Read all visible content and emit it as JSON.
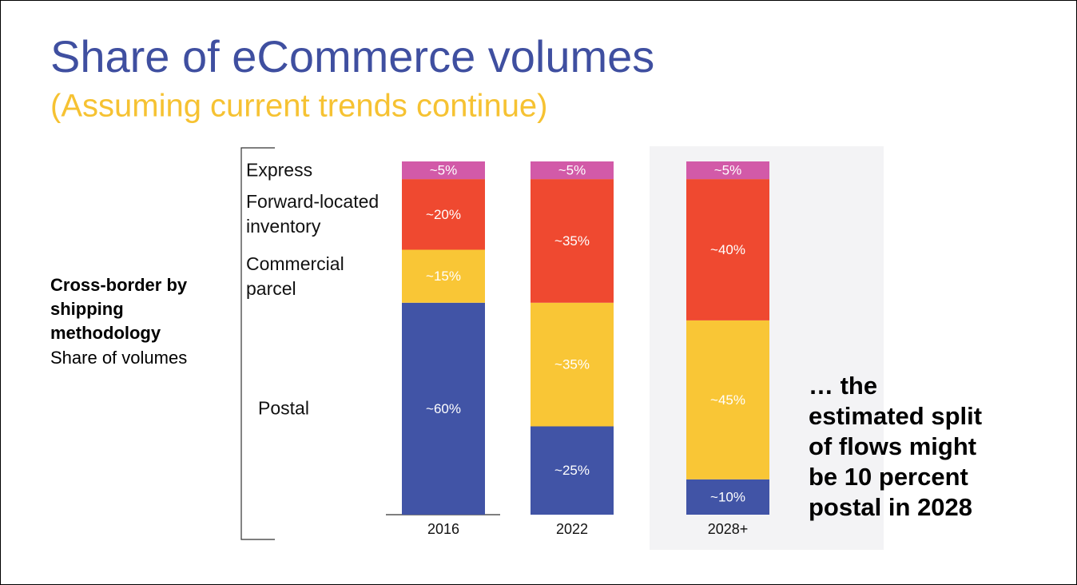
{
  "chart_data": {
    "type": "stacked_bar",
    "title": "Share of eCommerce volumes",
    "subtitle": "(Assuming current trends continue)",
    "axis_title": "Cross-border by\nshipping\nmethodology",
    "axis_subtitle": "Share of volumes",
    "annotation": "… the\nestimated split\nof flows might\nbe 10 percent\npostal in 2028",
    "categories": [
      "2016",
      "2022",
      "2028+"
    ],
    "series": [
      {
        "name": "Postal",
        "color": "#4154a6",
        "values": [
          60,
          25,
          10
        ],
        "value_labels": [
          "~60%",
          "~25%",
          "~10%"
        ]
      },
      {
        "name": "Commercial parcel",
        "color": "#f9c636",
        "values": [
          15,
          35,
          45
        ],
        "value_labels": [
          "~15%",
          "~35%",
          "~45%"
        ]
      },
      {
        "name": "Forward-located inventory",
        "color": "#ef4930",
        "values": [
          20,
          35,
          40
        ],
        "value_labels": [
          "~20%",
          "~35%",
          "~40%"
        ]
      },
      {
        "name": "Express",
        "color": "#d25aa8",
        "values": [
          5,
          5,
          5
        ],
        "value_labels": [
          "~5%",
          "~5%",
          "~5%"
        ]
      }
    ]
  }
}
